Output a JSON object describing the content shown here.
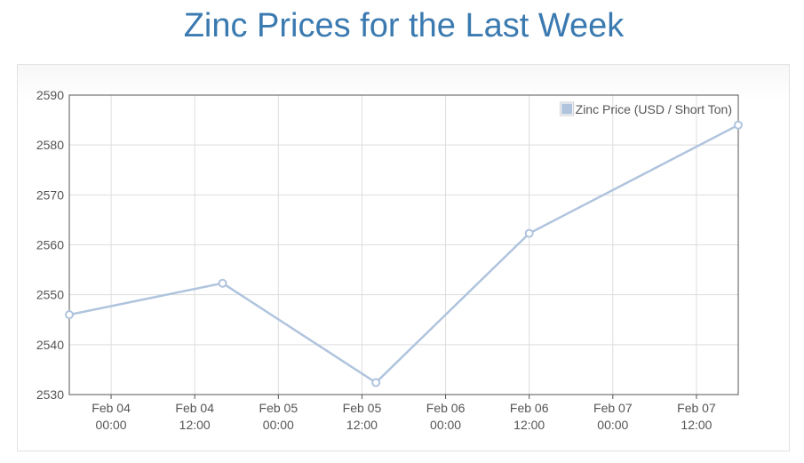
{
  "chart_data": {
    "type": "line",
    "title": "Zinc Prices for the Last Week",
    "xlabel": "",
    "ylabel": "",
    "ylim": [
      2530,
      2590
    ],
    "y_ticks": [
      "2590",
      "2580",
      "2570",
      "2560",
      "2550",
      "2540",
      "2530"
    ],
    "x_ticks": [
      {
        "date": "Feb 04",
        "time": "00:00"
      },
      {
        "date": "Feb 04",
        "time": "12:00"
      },
      {
        "date": "Feb 05",
        "time": "00:00"
      },
      {
        "date": "Feb 05",
        "time": "12:00"
      },
      {
        "date": "Feb 06",
        "time": "00:00"
      },
      {
        "date": "Feb 06",
        "time": "12:00"
      },
      {
        "date": "Feb 07",
        "time": "00:00"
      },
      {
        "date": "Feb 07",
        "time": "12:00"
      }
    ],
    "xlim": [
      "2023-02-03 18:00",
      "2023-02-07 18:00"
    ],
    "grid": true,
    "legend_position": "top-right",
    "series": [
      {
        "name": "Zinc Price (USD / Short Ton)",
        "color": "#b0c4de",
        "x": [
          "2023-02-03 18:00",
          "2023-02-04 16:00",
          "2023-02-05 14:00",
          "2023-02-06 12:00",
          "2023-02-07 18:00"
        ],
        "values": [
          2546,
          2552.3,
          2532.4,
          2562.3,
          2584
        ]
      }
    ]
  }
}
